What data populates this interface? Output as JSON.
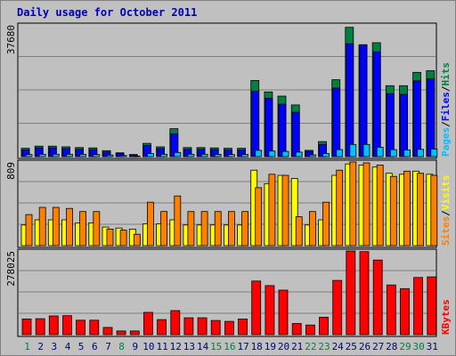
{
  "window": {
    "title": "Daily usage for October 2011"
  },
  "colors": {
    "frame_bg": "#c0c0c0",
    "plot_bg": "#c0c0c0",
    "grid": "#808080",
    "title": "#0000b0",
    "hits": "#008040",
    "files": "#0000ff",
    "pages": "#00c0ff",
    "visits": "#ffff00",
    "sites": "#ff8000",
    "kbytes": "#ff0000",
    "weekday_label": "#000080",
    "weekend_label": "#008040"
  },
  "chart_data": [
    {
      "type": "bar",
      "panel": "top",
      "ymax_label": "37680",
      "ylim": [
        0,
        37680
      ],
      "legend": {
        "pages": "Pages",
        "files": "Files",
        "hits": "Hits",
        "sep": "/"
      },
      "categories": [
        "1",
        "2",
        "3",
        "4",
        "5",
        "6",
        "7",
        "8",
        "9",
        "10",
        "11",
        "12",
        "13",
        "14",
        "15",
        "16",
        "17",
        "18",
        "19",
        "20",
        "21",
        "22",
        "23",
        "24",
        "25",
        "26",
        "27",
        "28",
        "29",
        "30",
        "31"
      ],
      "weekend": [
        "1",
        "8",
        "15",
        "16",
        "22",
        "23",
        "29",
        "30"
      ],
      "series": [
        {
          "name": "Hits",
          "values": [
            2400,
            3000,
            3000,
            2800,
            2600,
            2500,
            1700,
            1100,
            600,
            3800,
            2800,
            8000,
            2600,
            2600,
            2500,
            2400,
            2400,
            21800,
            18500,
            17300,
            14800,
            1800,
            4300,
            22000,
            37000,
            32000,
            32600,
            20300,
            20300,
            24100,
            24600
          ]
        },
        {
          "name": "Files",
          "values": [
            1900,
            2500,
            2500,
            2300,
            2100,
            2000,
            1300,
            900,
            450,
            3200,
            2300,
            6500,
            2100,
            2100,
            2000,
            1900,
            1900,
            18700,
            16700,
            15000,
            12700,
            1500,
            3500,
            19600,
            32300,
            32000,
            30000,
            18000,
            17800,
            21700,
            22200
          ]
        },
        {
          "name": "Pages",
          "values": [
            600,
            700,
            700,
            700,
            650,
            600,
            450,
            300,
            150,
            900,
            700,
            1200,
            700,
            700,
            650,
            600,
            600,
            1800,
            1600,
            1500,
            1300,
            500,
            900,
            2000,
            3500,
            3500,
            2700,
            2000,
            1900,
            2100,
            2200
          ]
        }
      ]
    },
    {
      "type": "bar",
      "panel": "middle",
      "ymax_label": "809",
      "ylim": [
        0,
        809
      ],
      "legend": {
        "sites": "Sites",
        "visits": "Visits",
        "sep": "/"
      },
      "categories": [
        "1",
        "2",
        "3",
        "4",
        "5",
        "6",
        "7",
        "8",
        "9",
        "10",
        "11",
        "12",
        "13",
        "14",
        "15",
        "16",
        "17",
        "18",
        "19",
        "20",
        "21",
        "22",
        "23",
        "24",
        "25",
        "26",
        "27",
        "28",
        "29",
        "30",
        "31"
      ],
      "series": [
        {
          "name": "Visits",
          "values": [
            200,
            250,
            250,
            250,
            220,
            220,
            180,
            170,
            160,
            210,
            210,
            250,
            200,
            200,
            200,
            200,
            200,
            730,
            600,
            680,
            650,
            200,
            250,
            680,
            790,
            780,
            760,
            700,
            690,
            720,
            690
          ]
        },
        {
          "name": "Sites",
          "values": [
            300,
            370,
            370,
            360,
            330,
            330,
            160,
            150,
            110,
            420,
            330,
            480,
            330,
            330,
            330,
            330,
            330,
            560,
            690,
            680,
            280,
            330,
            420,
            730,
            809,
            800,
            780,
            670,
            720,
            700,
            680
          ]
        }
      ]
    },
    {
      "type": "bar",
      "panel": "bottom",
      "ymax_label": "278025",
      "ylim": [
        0,
        278025
      ],
      "legend": {
        "kbytes": "KBytes"
      },
      "categories": [
        "1",
        "2",
        "3",
        "4",
        "5",
        "6",
        "7",
        "8",
        "9",
        "10",
        "11",
        "12",
        "13",
        "14",
        "15",
        "16",
        "17",
        "18",
        "19",
        "20",
        "21",
        "22",
        "23",
        "24",
        "25",
        "26",
        "27",
        "28",
        "29",
        "30",
        "31"
      ],
      "series": [
        {
          "name": "KBytes",
          "values": [
            52000,
            53000,
            62000,
            63000,
            48000,
            48000,
            24000,
            12000,
            12000,
            74000,
            50000,
            80000,
            56000,
            56000,
            47000,
            44000,
            52000,
            178000,
            163000,
            148000,
            37000,
            32000,
            58000,
            180000,
            278000,
            276000,
            248000,
            165000,
            153000,
            190000,
            192000
          ]
        }
      ]
    }
  ]
}
